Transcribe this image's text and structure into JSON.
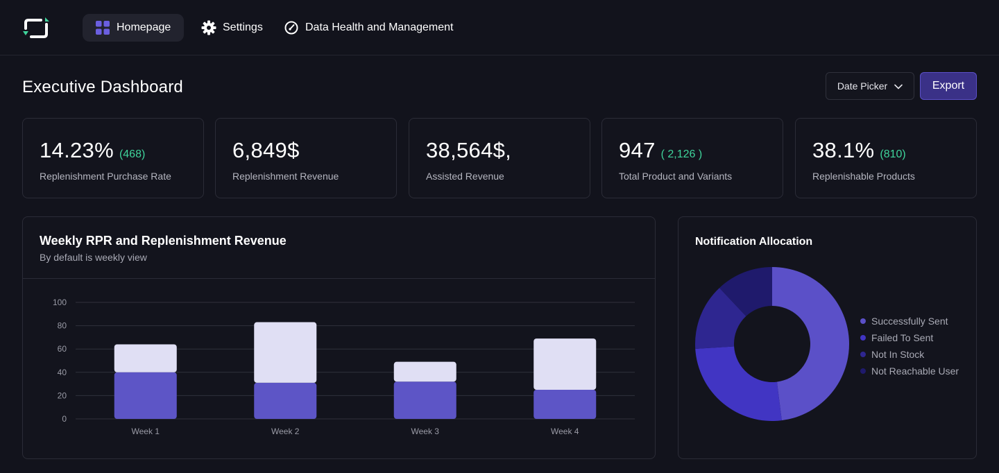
{
  "nav": {
    "items": [
      {
        "label": "Homepage",
        "icon": "grid-icon",
        "active": true
      },
      {
        "label": "Settings",
        "icon": "gear-icon"
      },
      {
        "label": "Data Health and Management",
        "icon": "gauge-icon"
      }
    ]
  },
  "header": {
    "title": "Executive Dashboard",
    "date_picker_label": "Date Picker",
    "export_label": "Export"
  },
  "kpis": [
    {
      "value": "14.23%",
      "sub": "(468)",
      "label": "Replenishment Purchase Rate"
    },
    {
      "value": "6,849$",
      "sub": "",
      "label": "Replenishment Revenue"
    },
    {
      "value": "38,564$,",
      "sub": "",
      "label": "Assisted Revenue"
    },
    {
      "value": "947",
      "sub": "( 2,126 )",
      "label": "Total Product and Variants"
    },
    {
      "value": "38.1%",
      "sub": "(810)",
      "label": "Replenishable Products"
    }
  ],
  "colors": {
    "accent": "#5b50c8",
    "positive": "#3fd49b",
    "bar_bottom": "#5d55c6",
    "bar_top": "#e0dff4"
  },
  "chart_data": [
    {
      "type": "bar",
      "title": "Weekly RPR and Replenishment Revenue",
      "subtitle": "By default is weekly view",
      "categories": [
        "Week 1",
        "Week 2",
        "Week 3",
        "Week 4"
      ],
      "series": [
        {
          "values": [
            40,
            31,
            32,
            25
          ],
          "color": "#5d55c6"
        },
        {
          "values": [
            24,
            52,
            17,
            44
          ],
          "color": "#e0dff4"
        }
      ],
      "stacked": true,
      "ylim": [
        0,
        100
      ],
      "yticks": [
        0,
        20,
        40,
        60,
        80,
        100
      ],
      "grid": true
    },
    {
      "type": "pie",
      "title": "Notification Allocation",
      "donut": true,
      "labels": [
        "Successfully Sent",
        "Failed To Sent",
        "Not In Stock",
        "Not Reachable User"
      ],
      "values": [
        48,
        26,
        14,
        12
      ],
      "colors": [
        "#5b50c8",
        "#4135c3",
        "#2e2690",
        "#1f1a6c"
      ],
      "legend": "right"
    }
  ]
}
